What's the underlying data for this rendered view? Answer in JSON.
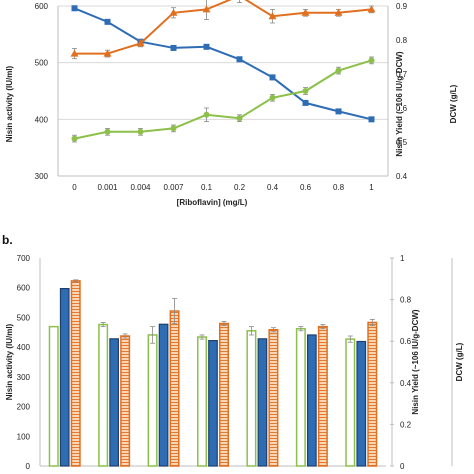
{
  "colors": {
    "activity": "#2e6db4",
    "yield": "#e07020",
    "dcw": "#8cc04a",
    "grid": "#d9d9d9",
    "text": "#222222"
  },
  "chart_data": [
    {
      "type": "line",
      "panel_label": "",
      "categories": [
        "0",
        "0.001",
        "0.004",
        "0.007",
        "0.1",
        "0.2",
        "0.4",
        "0.6",
        "0.8",
        "1"
      ],
      "xlabel": "[Riboflavin] (mg/L)",
      "ylabel_left": "Nisin activity (IU/ml)",
      "ylabel_right1": "Nisin Yield (~106 IU/g-DCW)",
      "ylabel_right2": "DCW (g/L)",
      "ylim_left": [
        300,
        600
      ],
      "yticks_left": [
        "300",
        "400",
        "500",
        "600"
      ],
      "ylim_right": [
        0.4,
        0.9
      ],
      "yticks_right": [
        "0.4",
        "0.5",
        "0.6",
        "0.7",
        "0.8",
        "0.9"
      ],
      "grid": true,
      "series": [
        {
          "key": "activity",
          "marker": "square",
          "axis": "left",
          "values": [
            596,
            572,
            537,
            526,
            528,
            506,
            474,
            429,
            414,
            400
          ],
          "errors": [
            3,
            3,
            3,
            3,
            4,
            4,
            4,
            3,
            3,
            3
          ]
        },
        {
          "key": "yield",
          "marker": "triangle",
          "axis": "right",
          "values": [
            0.76,
            0.76,
            0.79,
            0.88,
            0.89,
            0.93,
            0.87,
            0.88,
            0.88,
            0.89
          ],
          "errors": [
            0.015,
            0.01,
            0.01,
            0.015,
            0.03,
            0.02,
            0.02,
            0.01,
            0.01,
            0.01
          ]
        },
        {
          "key": "dcw",
          "marker": "circle",
          "axis": "right",
          "values": [
            0.51,
            0.53,
            0.53,
            0.54,
            0.58,
            0.57,
            0.63,
            0.65,
            0.71,
            0.74
          ],
          "errors": [
            0.01,
            0.01,
            0.01,
            0.01,
            0.02,
            0.01,
            0.01,
            0.01,
            0.01,
            0.01
          ]
        }
      ]
    },
    {
      "type": "bar",
      "panel_label": "b.",
      "categories": [
        "",
        "",
        "",
        "",
        "",
        "",
        ""
      ],
      "ylabel_left": "Nisin activity (IU/ml)",
      "ylabel_right1": "Nisin Yield (~106 IU/g-DCW)",
      "ylabel_right2": "DCW (g/L)",
      "ylim_left": [
        0,
        700
      ],
      "yticks_left": [
        "0",
        "100",
        "200",
        "300",
        "400",
        "500",
        "600",
        "700"
      ],
      "ylim_right": [
        0,
        1
      ],
      "yticks_right": [
        "0",
        "0.2",
        "0.4",
        "0.6",
        "0.8",
        "1"
      ],
      "grid": false,
      "series": [
        {
          "key": "dcw",
          "style": "outline",
          "axis": "right",
          "values": [
            0.67,
            0.68,
            0.63,
            0.62,
            0.65,
            0.66,
            0.61
          ],
          "errors": [
            0.0,
            0.01,
            0.04,
            0.01,
            0.02,
            0.01,
            0.015
          ]
        },
        {
          "key": "activity",
          "style": "solid",
          "axis": "left",
          "values": [
            597,
            428,
            477,
            422,
            428,
            441,
            419
          ],
          "errors": [
            0,
            0,
            0,
            0,
            0,
            0,
            0
          ]
        },
        {
          "key": "yield",
          "style": "hatched",
          "axis": "right",
          "values": [
            0.89,
            0.625,
            0.745,
            0.685,
            0.655,
            0.67,
            0.69
          ],
          "errors": [
            0.005,
            0.01,
            0.06,
            0.01,
            0.01,
            0.01,
            0.015
          ]
        }
      ]
    }
  ]
}
